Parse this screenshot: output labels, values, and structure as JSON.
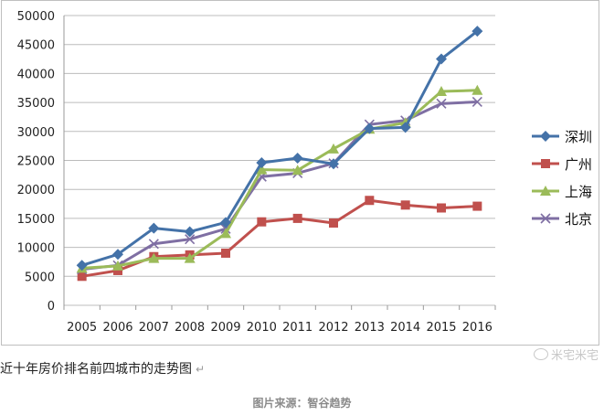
{
  "chart_data": {
    "type": "line",
    "title": "",
    "xlabel": "",
    "ylabel": "",
    "x": [
      "2005",
      "2006",
      "2007",
      "2008",
      "2009",
      "2010",
      "2011",
      "2012",
      "2013",
      "2014",
      "2015",
      "2016"
    ],
    "ylim": [
      0,
      50000
    ],
    "yticks": [
      0,
      5000,
      10000,
      15000,
      20000,
      25000,
      30000,
      35000,
      40000,
      45000,
      50000
    ],
    "grid": true,
    "legend_position": "right",
    "series": [
      {
        "name": "深圳",
        "color": "#4472a8",
        "marker": "diamond",
        "values": [
          6900,
          8800,
          13300,
          12700,
          14300,
          24600,
          25400,
          24400,
          30500,
          30700,
          42500,
          47300
        ]
      },
      {
        "name": "广州",
        "color": "#c0504d",
        "marker": "square",
        "values": [
          5000,
          6000,
          8400,
          8700,
          9000,
          14400,
          15000,
          14200,
          18100,
          17300,
          16800,
          17100
        ]
      },
      {
        "name": "上海",
        "color": "#9bbb59",
        "marker": "triangle",
        "values": [
          6400,
          6800,
          8100,
          8100,
          12400,
          23400,
          23300,
          27000,
          30400,
          31500,
          36900,
          37100
        ]
      },
      {
        "name": "北京",
        "color": "#7f6fa3",
        "marker": "x",
        "values": [
          6200,
          6900,
          10600,
          11400,
          13200,
          22200,
          22800,
          24500,
          31200,
          31900,
          34800,
          35100
        ]
      }
    ]
  },
  "caption": "近十年房价排名前四城市的走势图",
  "caption_mark": "↵",
  "watermark": "米宅米宅",
  "source": "图片来源：智谷趋势"
}
